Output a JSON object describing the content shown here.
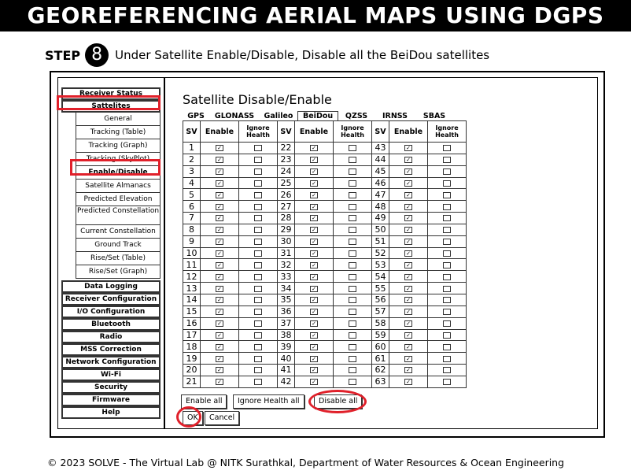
{
  "title": "GEOREFERENCING AERIAL MAPS USING DGPS",
  "step": {
    "label": "STEP",
    "number": "8",
    "instruction": "Under Satellite Enable/Disable, Disable all the BeiDou satellites"
  },
  "sidebar": {
    "top": [
      "Receiver Status",
      "Sattelites"
    ],
    "sub": [
      "General",
      "Tracking (Table)",
      "Tracking (Graph)",
      "Tracking (SkyPlot)",
      "Enable/Disable",
      "Satellite Almanacs",
      "Predicted Elevation",
      "Predicted Constellation",
      "Current Constellation",
      "Ground Track",
      "Rise/Set (Table)",
      "Rise/Set (Graph)"
    ],
    "bottom": [
      "Data Logging",
      "Receiver Configuration",
      "I/O Configuration",
      "Bluetooth",
      "Radio",
      "MSS Correction",
      "Network Configuration",
      "Wi-Fi",
      "Security",
      "Firmware",
      "Help"
    ]
  },
  "content": {
    "heading": "Satellite Disable/Enable",
    "tabs": [
      "GPS",
      "GLONASS",
      "Galileo",
      "BeiDou",
      "QZSS",
      "IRNSS",
      "SBAS"
    ],
    "selected_tab": "BeiDou",
    "headers": {
      "sv": "SV",
      "enable": "Enable",
      "ignore": "Ignore Health"
    },
    "columns": [
      {
        "sv_start": 1,
        "enable": true,
        "ignore_health": false
      },
      {
        "sv_start": 22,
        "enable": true,
        "ignore_health": false
      },
      {
        "sv_start": 43,
        "enable": true,
        "ignore_health": false
      }
    ],
    "rows_per_column": 21,
    "buttons": {
      "enable_all": "Enable all",
      "ignore_health_all": "Ignore Health all",
      "disable_all": "Disable all",
      "ok": "OK",
      "cancel": "Cancel"
    }
  },
  "highlight_color": "#e0202a",
  "footer": "© 2023 SOLVE - The Virtual Lab @ NITK Surathkal, Department of Water Resources & Ocean Engineering"
}
